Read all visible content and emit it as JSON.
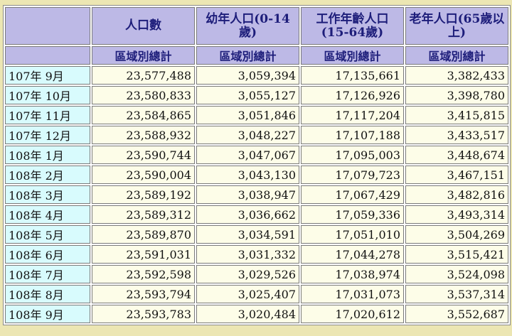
{
  "table": {
    "headers": [
      "",
      "人口數",
      "幼年人口(0-14歲)",
      "工作年齡人口(15-64歲)",
      "老年人口(65歲以上)"
    ],
    "subheaders": [
      "",
      "區域別總計",
      "區域別總計",
      "區域別總計",
      "區域別總計"
    ],
    "rows": [
      {
        "month": "107年 9月",
        "values": [
          "23,577,488",
          "3,059,394",
          "17,135,661",
          "3,382,433"
        ]
      },
      {
        "month": "107年 10月",
        "values": [
          "23,580,833",
          "3,055,127",
          "17,126,926",
          "3,398,780"
        ]
      },
      {
        "month": "107年 11月",
        "values": [
          "23,584,865",
          "3,051,846",
          "17,117,204",
          "3,415,815"
        ]
      },
      {
        "month": "107年 12月",
        "values": [
          "23,588,932",
          "3,048,227",
          "17,107,188",
          "3,433,517"
        ]
      },
      {
        "month": "108年 1月",
        "values": [
          "23,590,744",
          "3,047,067",
          "17,095,003",
          "3,448,674"
        ]
      },
      {
        "month": "108年 2月",
        "values": [
          "23,590,004",
          "3,043,130",
          "17,079,723",
          "3,467,151"
        ]
      },
      {
        "month": "108年 3月",
        "values": [
          "23,589,192",
          "3,038,947",
          "17,067,429",
          "3,482,816"
        ]
      },
      {
        "month": "108年 4月",
        "values": [
          "23,589,312",
          "3,036,662",
          "17,059,336",
          "3,493,314"
        ]
      },
      {
        "month": "108年 5月",
        "values": [
          "23,589,870",
          "3,034,591",
          "17,051,010",
          "3,504,269"
        ]
      },
      {
        "month": "108年 6月",
        "values": [
          "23,591,031",
          "3,031,332",
          "17,044,278",
          "3,515,421"
        ]
      },
      {
        "month": "108年 7月",
        "values": [
          "23,592,598",
          "3,029,526",
          "17,038,974",
          "3,524,098"
        ]
      },
      {
        "month": "108年 8月",
        "values": [
          "23,593,794",
          "3,025,407",
          "17,031,073",
          "3,537,314"
        ]
      },
      {
        "month": "108年 9月",
        "values": [
          "23,593,783",
          "3,020,484",
          "17,020,612",
          "3,552,687"
        ]
      }
    ]
  },
  "colors": {
    "page_background": "#ece6b3",
    "header_background": "#bdb9e6",
    "header_text": "#1d1d7a",
    "month_cell_background": "#d8fbfd",
    "value_cell_background": "#fdfde8"
  }
}
